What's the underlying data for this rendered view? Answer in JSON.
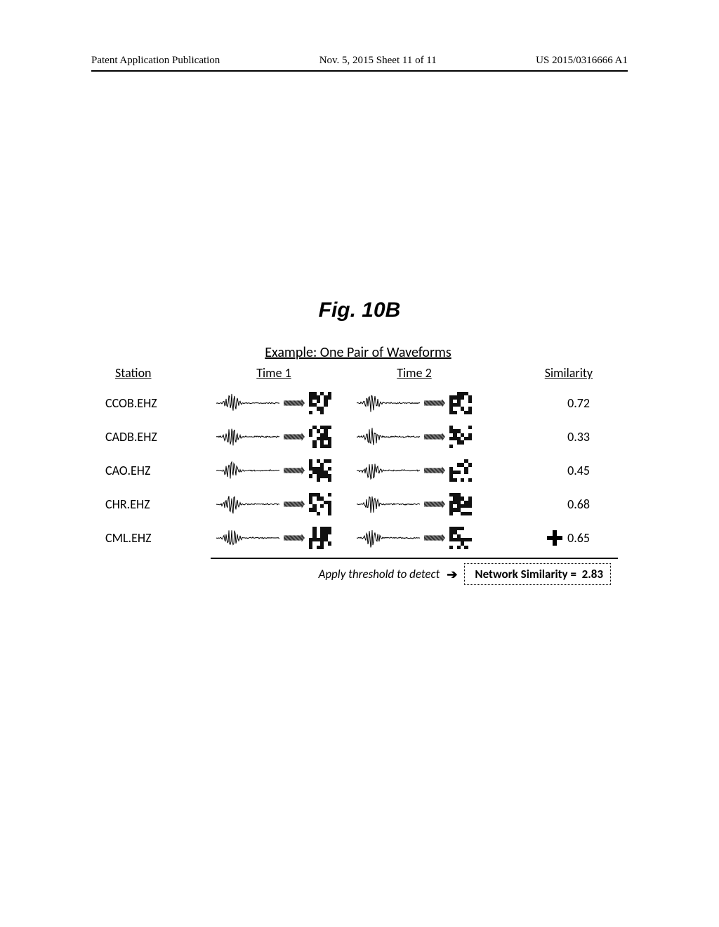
{
  "header": {
    "left": "Patent Application Publication",
    "center": "Nov. 5, 2015   Sheet 11 of 11",
    "right": "US 2015/0316666 A1"
  },
  "figure_label": "Fig. 10B",
  "example_title": "Example: One Pair of Waveforms",
  "columns": {
    "station": "Station",
    "time1": "Time 1",
    "time2": "Time 2",
    "similarity": "Similarity"
  },
  "rows": [
    {
      "station": "CCOB.EHZ",
      "similarity": "0.72",
      "has_plus": false,
      "seed1": 11,
      "seed2": 37,
      "fp1": 5,
      "fp2": 19
    },
    {
      "station": "CADB.EHZ",
      "similarity": "0.33",
      "has_plus": false,
      "seed1": 23,
      "seed2": 41,
      "fp1": 8,
      "fp2": 22
    },
    {
      "station": "CAO.EHZ",
      "similarity": "0.45",
      "has_plus": false,
      "seed1": 7,
      "seed2": 53,
      "fp1": 3,
      "fp2": 27
    },
    {
      "station": "CHR.EHZ",
      "similarity": "0.68",
      "has_plus": false,
      "seed1": 31,
      "seed2": 59,
      "fp1": 14,
      "fp2": 31
    },
    {
      "station": "CML.EHZ",
      "similarity": "0.65",
      "has_plus": true,
      "seed1": 17,
      "seed2": 47,
      "fp1": 9,
      "fp2": 25
    }
  ],
  "footer": {
    "apply_text": "Apply threshold to detect",
    "arrow": "➔",
    "net_sim_label": "Network Similarity   =",
    "net_sim_value": "2.83"
  },
  "colors": {
    "text": "#000000",
    "background": "#ffffff",
    "rule": "#000000"
  }
}
